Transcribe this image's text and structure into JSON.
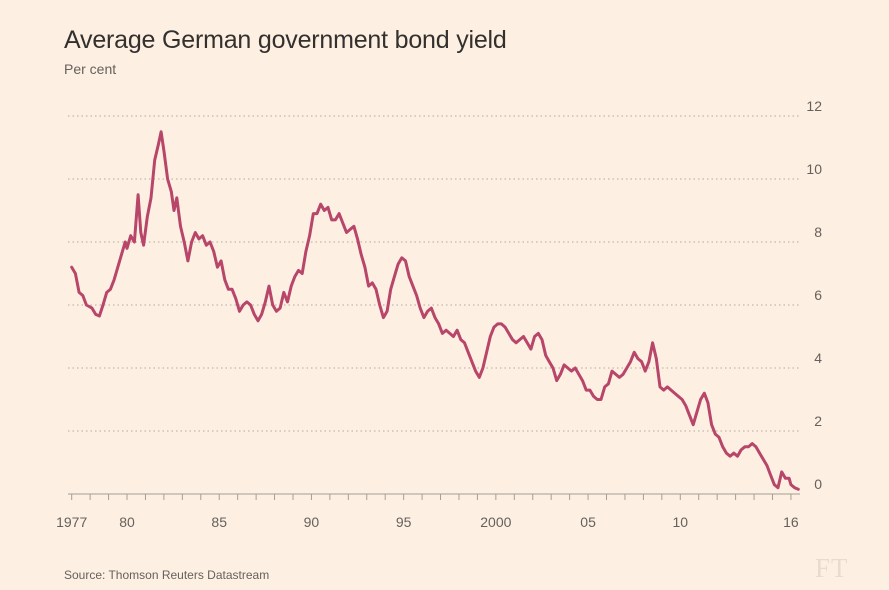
{
  "chart_data": {
    "type": "line",
    "title": "Average German government bond yield",
    "subtitle": "Per cent",
    "source": "Source: Thomson Reuters Datastream",
    "logo": "FT",
    "xlabel": "",
    "ylabel": "Per cent",
    "xlim": [
      1976.8,
      2016.6
    ],
    "ylim": [
      0,
      12
    ],
    "yticks": [
      0,
      2,
      4,
      6,
      8,
      10,
      12
    ],
    "xtick_labels": [
      {
        "x": 1977,
        "label": "1977"
      },
      {
        "x": 1980,
        "label": "80"
      },
      {
        "x": 1985,
        "label": "85"
      },
      {
        "x": 1990,
        "label": "90"
      },
      {
        "x": 1995,
        "label": "95"
      },
      {
        "x": 2000,
        "label": "2000"
      },
      {
        "x": 2005,
        "label": "05"
      },
      {
        "x": 2010,
        "label": "10"
      },
      {
        "x": 2016,
        "label": "16"
      }
    ],
    "grid": "horizontal dotted",
    "line_color": "#b8456a",
    "series": [
      {
        "name": "German government bond yield",
        "points": [
          [
            1977.0,
            7.2
          ],
          [
            1977.2,
            7.0
          ],
          [
            1977.4,
            6.4
          ],
          [
            1977.6,
            6.3
          ],
          [
            1977.8,
            6.0
          ],
          [
            1978.1,
            5.9
          ],
          [
            1978.3,
            5.7
          ],
          [
            1978.5,
            5.65
          ],
          [
            1978.7,
            6.0
          ],
          [
            1978.9,
            6.4
          ],
          [
            1979.1,
            6.5
          ],
          [
            1979.3,
            6.8
          ],
          [
            1979.5,
            7.2
          ],
          [
            1979.7,
            7.6
          ],
          [
            1979.9,
            8.0
          ],
          [
            1980.0,
            7.8
          ],
          [
            1980.2,
            8.2
          ],
          [
            1980.4,
            8.0
          ],
          [
            1980.6,
            9.5
          ],
          [
            1980.75,
            8.3
          ],
          [
            1980.9,
            7.9
          ],
          [
            1981.1,
            8.8
          ],
          [
            1981.3,
            9.4
          ],
          [
            1981.5,
            10.6
          ],
          [
            1981.7,
            11.1
          ],
          [
            1981.85,
            11.5
          ],
          [
            1982.0,
            10.9
          ],
          [
            1982.2,
            10.0
          ],
          [
            1982.4,
            9.6
          ],
          [
            1982.55,
            9.0
          ],
          [
            1982.7,
            9.4
          ],
          [
            1982.9,
            8.5
          ],
          [
            1983.1,
            8.0
          ],
          [
            1983.3,
            7.4
          ],
          [
            1983.5,
            8.0
          ],
          [
            1983.7,
            8.3
          ],
          [
            1983.9,
            8.1
          ],
          [
            1984.1,
            8.2
          ],
          [
            1984.3,
            7.9
          ],
          [
            1984.5,
            8.0
          ],
          [
            1984.7,
            7.7
          ],
          [
            1984.9,
            7.2
          ],
          [
            1985.1,
            7.4
          ],
          [
            1985.3,
            6.8
          ],
          [
            1985.5,
            6.5
          ],
          [
            1985.7,
            6.5
          ],
          [
            1985.9,
            6.2
          ],
          [
            1986.1,
            5.8
          ],
          [
            1986.3,
            6.0
          ],
          [
            1986.5,
            6.1
          ],
          [
            1986.7,
            6.0
          ],
          [
            1986.9,
            5.7
          ],
          [
            1987.1,
            5.5
          ],
          [
            1987.3,
            5.7
          ],
          [
            1987.5,
            6.1
          ],
          [
            1987.7,
            6.6
          ],
          [
            1987.9,
            6.0
          ],
          [
            1988.1,
            5.8
          ],
          [
            1988.3,
            5.9
          ],
          [
            1988.5,
            6.4
          ],
          [
            1988.7,
            6.1
          ],
          [
            1988.9,
            6.6
          ],
          [
            1989.1,
            6.9
          ],
          [
            1989.3,
            7.1
          ],
          [
            1989.5,
            7.0
          ],
          [
            1989.7,
            7.7
          ],
          [
            1989.9,
            8.2
          ],
          [
            1990.1,
            8.9
          ],
          [
            1990.3,
            8.9
          ],
          [
            1990.5,
            9.2
          ],
          [
            1990.7,
            9.0
          ],
          [
            1990.9,
            9.1
          ],
          [
            1991.1,
            8.7
          ],
          [
            1991.3,
            8.7
          ],
          [
            1991.5,
            8.9
          ],
          [
            1991.7,
            8.6
          ],
          [
            1991.9,
            8.3
          ],
          [
            1992.1,
            8.4
          ],
          [
            1992.3,
            8.5
          ],
          [
            1992.5,
            8.1
          ],
          [
            1992.7,
            7.6
          ],
          [
            1992.9,
            7.2
          ],
          [
            1993.1,
            6.6
          ],
          [
            1993.3,
            6.7
          ],
          [
            1993.5,
            6.5
          ],
          [
            1993.7,
            6.0
          ],
          [
            1993.9,
            5.6
          ],
          [
            1994.1,
            5.8
          ],
          [
            1994.3,
            6.5
          ],
          [
            1994.5,
            6.9
          ],
          [
            1994.7,
            7.3
          ],
          [
            1994.9,
            7.5
          ],
          [
            1995.1,
            7.4
          ],
          [
            1995.3,
            6.9
          ],
          [
            1995.5,
            6.6
          ],
          [
            1995.7,
            6.3
          ],
          [
            1995.9,
            5.9
          ],
          [
            1996.1,
            5.6
          ],
          [
            1996.3,
            5.8
          ],
          [
            1996.5,
            5.9
          ],
          [
            1996.7,
            5.6
          ],
          [
            1996.9,
            5.4
          ],
          [
            1997.1,
            5.1
          ],
          [
            1997.3,
            5.2
          ],
          [
            1997.5,
            5.1
          ],
          [
            1997.7,
            5.0
          ],
          [
            1997.9,
            5.2
          ],
          [
            1998.1,
            4.9
          ],
          [
            1998.3,
            4.8
          ],
          [
            1998.5,
            4.5
          ],
          [
            1998.7,
            4.2
          ],
          [
            1998.9,
            3.9
          ],
          [
            1999.1,
            3.7
          ],
          [
            1999.3,
            4.0
          ],
          [
            1999.5,
            4.5
          ],
          [
            1999.7,
            5.0
          ],
          [
            1999.9,
            5.3
          ],
          [
            2000.1,
            5.4
          ],
          [
            2000.3,
            5.4
          ],
          [
            2000.5,
            5.3
          ],
          [
            2000.7,
            5.1
          ],
          [
            2000.9,
            4.9
          ],
          [
            2001.1,
            4.8
          ],
          [
            2001.3,
            4.9
          ],
          [
            2001.5,
            5.0
          ],
          [
            2001.7,
            4.8
          ],
          [
            2001.9,
            4.6
          ],
          [
            2002.1,
            5.0
          ],
          [
            2002.3,
            5.1
          ],
          [
            2002.5,
            4.9
          ],
          [
            2002.7,
            4.4
          ],
          [
            2002.9,
            4.2
          ],
          [
            2003.1,
            4.0
          ],
          [
            2003.3,
            3.6
          ],
          [
            2003.5,
            3.8
          ],
          [
            2003.7,
            4.1
          ],
          [
            2003.9,
            4.0
          ],
          [
            2004.1,
            3.9
          ],
          [
            2004.3,
            4.0
          ],
          [
            2004.5,
            3.8
          ],
          [
            2004.7,
            3.6
          ],
          [
            2004.9,
            3.3
          ],
          [
            2005.1,
            3.3
          ],
          [
            2005.3,
            3.1
          ],
          [
            2005.5,
            3.0
          ],
          [
            2005.7,
            3.0
          ],
          [
            2005.9,
            3.4
          ],
          [
            2006.1,
            3.5
          ],
          [
            2006.3,
            3.9
          ],
          [
            2006.5,
            3.8
          ],
          [
            2006.7,
            3.7
          ],
          [
            2006.9,
            3.8
          ],
          [
            2007.1,
            4.0
          ],
          [
            2007.3,
            4.2
          ],
          [
            2007.5,
            4.5
          ],
          [
            2007.7,
            4.3
          ],
          [
            2007.9,
            4.2
          ],
          [
            2008.1,
            3.9
          ],
          [
            2008.3,
            4.2
          ],
          [
            2008.5,
            4.8
          ],
          [
            2008.7,
            4.3
          ],
          [
            2008.9,
            3.4
          ],
          [
            2009.1,
            3.3
          ],
          [
            2009.3,
            3.4
          ],
          [
            2009.5,
            3.3
          ],
          [
            2009.7,
            3.2
          ],
          [
            2009.9,
            3.1
          ],
          [
            2010.1,
            3.0
          ],
          [
            2010.3,
            2.8
          ],
          [
            2010.5,
            2.5
          ],
          [
            2010.7,
            2.2
          ],
          [
            2010.9,
            2.6
          ],
          [
            2011.1,
            3.0
          ],
          [
            2011.3,
            3.2
          ],
          [
            2011.5,
            2.9
          ],
          [
            2011.7,
            2.2
          ],
          [
            2011.9,
            1.9
          ],
          [
            2012.1,
            1.8
          ],
          [
            2012.3,
            1.5
          ],
          [
            2012.5,
            1.3
          ],
          [
            2012.7,
            1.2
          ],
          [
            2012.9,
            1.3
          ],
          [
            2013.1,
            1.2
          ],
          [
            2013.3,
            1.4
          ],
          [
            2013.5,
            1.5
          ],
          [
            2013.7,
            1.5
          ],
          [
            2013.9,
            1.6
          ],
          [
            2014.1,
            1.5
          ],
          [
            2014.3,
            1.3
          ],
          [
            2014.5,
            1.1
          ],
          [
            2014.7,
            0.9
          ],
          [
            2014.9,
            0.6
          ],
          [
            2015.1,
            0.3
          ],
          [
            2015.3,
            0.2
          ],
          [
            2015.5,
            0.7
          ],
          [
            2015.7,
            0.5
          ],
          [
            2015.9,
            0.5
          ],
          [
            2016.0,
            0.3
          ],
          [
            2016.2,
            0.2
          ],
          [
            2016.4,
            0.15
          ]
        ]
      }
    ]
  }
}
